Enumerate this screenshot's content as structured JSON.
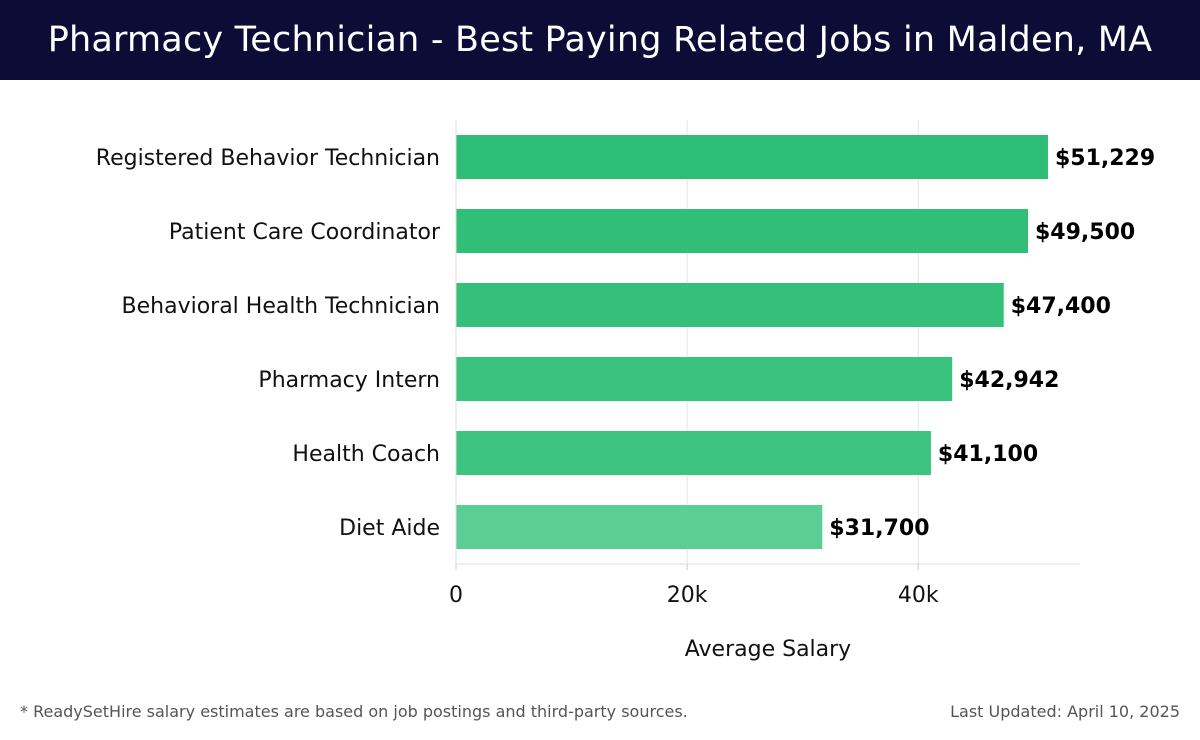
{
  "header": {
    "title": "Pharmacy Technician - Best Paying Related Jobs in Malden, MA"
  },
  "chart_data": {
    "type": "bar",
    "orientation": "horizontal",
    "title": "Pharmacy Technician - Best Paying Related Jobs in Malden, MA",
    "categories": [
      "Registered Behavior Technician",
      "Patient Care Coordinator",
      "Behavioral Health Technician",
      "Pharmacy Intern",
      "Health Coach",
      "Diet Aide"
    ],
    "values": [
      51229,
      49500,
      47400,
      42942,
      41100,
      31700
    ],
    "value_labels": [
      "$51,229",
      "$49,500",
      "$47,400",
      "$42,942",
      "$41,100",
      "$31,700"
    ],
    "bar_colors": [
      "#2ebd75",
      "#31be77",
      "#35c07a",
      "#3cc27f",
      "#3fc381",
      "#5bcd95"
    ],
    "xlabel": "Average Salary",
    "ylabel": "",
    "xlim": [
      0,
      54000
    ],
    "xticks": [
      0,
      20000,
      40000
    ],
    "xtick_labels": [
      "0",
      "20k",
      "40k"
    ],
    "grid": true
  },
  "footer": {
    "note": "* ReadySetHire salary estimates are based on job postings and third-party sources.",
    "updated": "Last Updated: April 10, 2025"
  }
}
